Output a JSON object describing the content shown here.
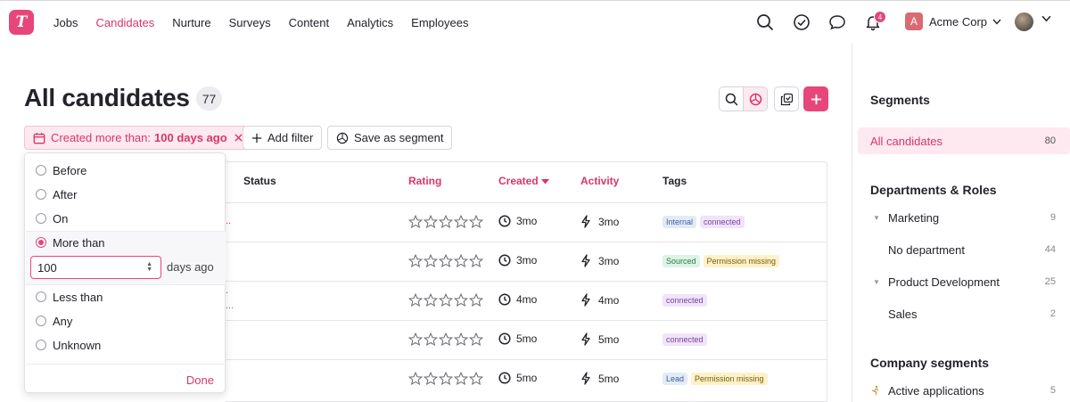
{
  "app": {
    "logo_letter": "T"
  },
  "nav": {
    "links": [
      "Jobs",
      "Candidates",
      "Nurture",
      "Surveys",
      "Content",
      "Analytics",
      "Employees"
    ],
    "active": "Candidates",
    "notification_count": "4",
    "company_initial": "A",
    "company_name": "Acme Corp"
  },
  "header": {
    "title": "All candidates",
    "count": "77"
  },
  "filters": {
    "active_filter_prefix": "Created more than:",
    "active_filter_value": "100 days ago",
    "add_filter": "Add filter",
    "save_segment": "Save as segment"
  },
  "table": {
    "columns": [
      "Status",
      "Rating",
      "Created",
      "Activity",
      "Tags"
    ],
    "rows": [
      {
        "created": "3mo",
        "activity": "3mo",
        "tags": [
          {
            "label": "Internal",
            "kind": "internal"
          },
          {
            "label": "connected",
            "kind": "connected"
          }
        ]
      },
      {
        "created": "3mo",
        "activity": "3mo",
        "tags": [
          {
            "label": "Sourced",
            "kind": "sourced"
          },
          {
            "label": "Permission missing",
            "kind": "permission"
          }
        ]
      },
      {
        "created": "4mo",
        "activity": "4mo",
        "tags": [
          {
            "label": "connected",
            "kind": "connected"
          }
        ]
      },
      {
        "created": "5mo",
        "activity": "5mo",
        "tags": [
          {
            "label": "connected",
            "kind": "connected"
          }
        ]
      },
      {
        "created": "5mo",
        "activity": "5mo",
        "tags": [
          {
            "label": "Lead",
            "kind": "lead"
          },
          {
            "label": "Permission missing",
            "kind": "permission"
          }
        ]
      }
    ]
  },
  "date_filter": {
    "options": [
      "Before",
      "After",
      "On",
      "More than",
      "Less than",
      "Any",
      "Unknown"
    ],
    "selected": "More than",
    "value": "100",
    "unit_suffix": "days ago",
    "done": "Done"
  },
  "sidebar": {
    "segments_heading": "Segments",
    "all": {
      "label": "All candidates",
      "count": "80"
    },
    "departments_heading": "Departments & Roles",
    "departments": [
      {
        "label": "Marketing",
        "count": "9",
        "expandable": true
      },
      {
        "label": "No department",
        "count": "44",
        "expandable": false
      },
      {
        "label": "Product Development",
        "count": "25",
        "expandable": true
      },
      {
        "label": "Sales",
        "count": "2",
        "expandable": false
      }
    ],
    "company_heading": "Company segments",
    "company_items": [
      {
        "label": "Active applications",
        "count": "5"
      }
    ]
  },
  "colors": {
    "accent": "#e6467a",
    "accent_text": "#d9356a"
  }
}
